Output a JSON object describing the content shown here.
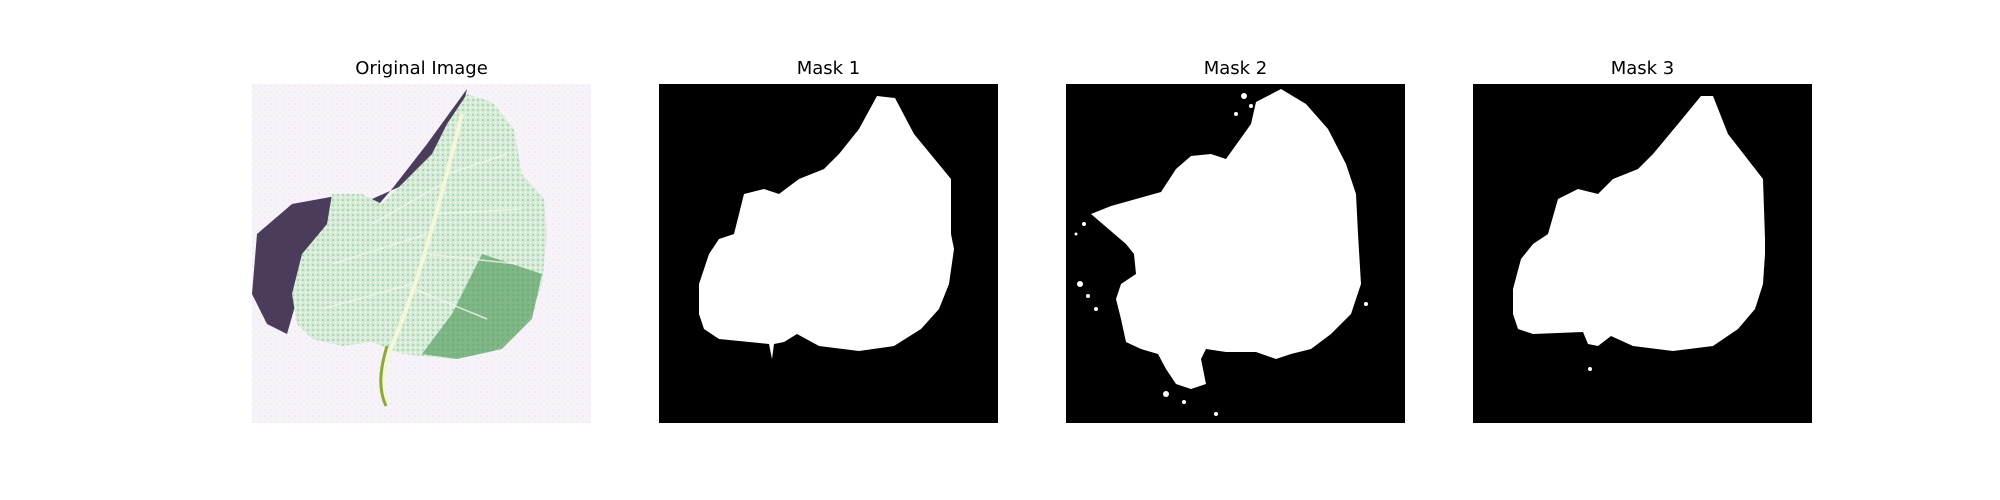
{
  "figure": {
    "panels": [
      {
        "title": "Original Image"
      },
      {
        "title": "Mask 1"
      },
      {
        "title": "Mask 2"
      },
      {
        "title": "Mask 3"
      }
    ],
    "colors": {
      "background": "#ffffff",
      "mask_background": "#000000",
      "mask_foreground": "#ffffff",
      "leaf": "#cfe8d2",
      "leaf_dark": "#3f8a4a",
      "shadow": "#4b3c5c",
      "paper": "#f7eff7"
    }
  }
}
